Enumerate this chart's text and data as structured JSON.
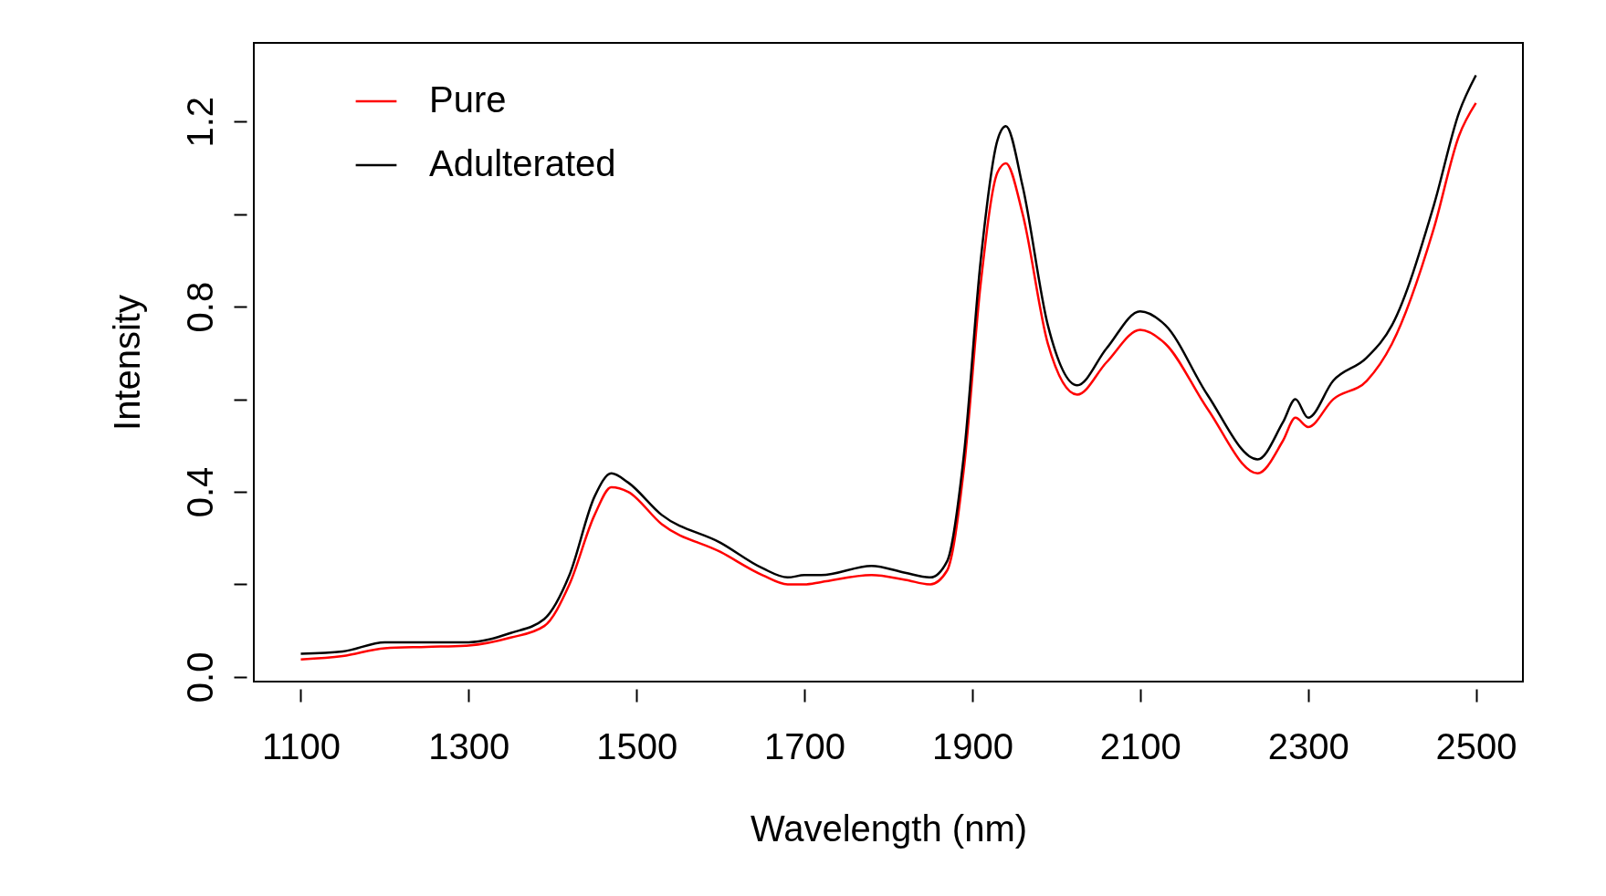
{
  "chart_data": {
    "type": "line",
    "xlabel": "Wavelength (nm)",
    "ylabel": "Intensity",
    "xlim": [
      1044,
      2556
    ],
    "ylim": [
      -0.01,
      1.37
    ],
    "xticks": [
      1100,
      1300,
      1500,
      1700,
      1900,
      2100,
      2300,
      2500
    ],
    "yticks": [
      {
        "value": 0,
        "label": "0.0"
      },
      {
        "value": 0.2,
        "label": null
      },
      0.4,
      {
        "value": 0.6,
        "label": null
      },
      0.8,
      {
        "value": 1.0,
        "label": null
      },
      1.2
    ],
    "grid": false,
    "legend": "top left",
    "line_style": "solid",
    "marker": "none",
    "x": [
      1100,
      1150,
      1200,
      1250,
      1300,
      1350,
      1390,
      1420,
      1450,
      1470,
      1490,
      1530,
      1600,
      1650,
      1680,
      1700,
      1720,
      1780,
      1820,
      1850,
      1870,
      1890,
      1910,
      1930,
      1940,
      1960,
      1990,
      2025,
      2060,
      2100,
      2130,
      2180,
      2240,
      2270,
      2285,
      2300,
      2330,
      2370,
      2400,
      2450,
      2480,
      2500
    ],
    "series": [
      {
        "name": "Pure",
        "color": "#ff0000",
        "values": [
          0.038,
          0.045,
          0.062,
          0.065,
          0.068,
          0.085,
          0.11,
          0.2,
          0.35,
          0.41,
          0.4,
          0.33,
          0.27,
          0.22,
          0.2,
          0.2,
          0.205,
          0.22,
          0.21,
          0.2,
          0.23,
          0.45,
          0.85,
          1.09,
          1.11,
          1.0,
          0.72,
          0.61,
          0.68,
          0.75,
          0.72,
          0.58,
          0.44,
          0.51,
          0.56,
          0.54,
          0.6,
          0.64,
          0.72,
          0.97,
          1.17,
          1.24
        ]
      },
      {
        "name": "Adulterated",
        "color": "#000000",
        "values": [
          0.05,
          0.055,
          0.075,
          0.075,
          0.075,
          0.095,
          0.125,
          0.22,
          0.39,
          0.44,
          0.42,
          0.35,
          0.29,
          0.235,
          0.215,
          0.22,
          0.22,
          0.24,
          0.225,
          0.215,
          0.25,
          0.48,
          0.9,
          1.16,
          1.19,
          1.06,
          0.76,
          0.63,
          0.71,
          0.79,
          0.76,
          0.61,
          0.47,
          0.55,
          0.6,
          0.56,
          0.64,
          0.69,
          0.76,
          1.02,
          1.22,
          1.3
        ]
      }
    ]
  }
}
